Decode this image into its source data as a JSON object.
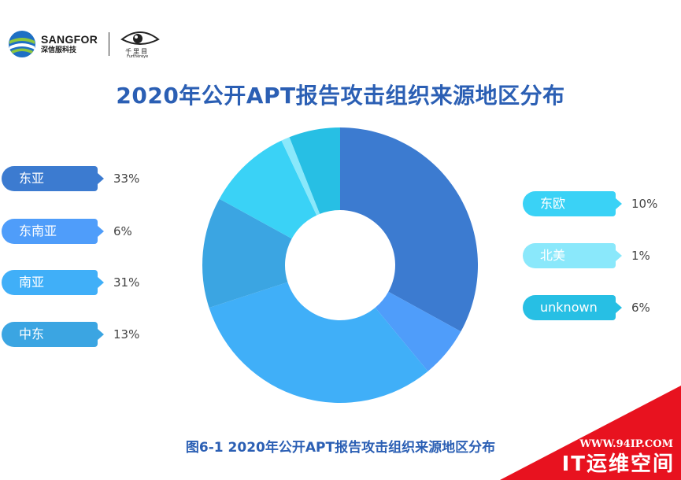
{
  "logo": {
    "sangfor_name": "SANGFOR",
    "sangfor_cn": "深信服科技",
    "eye_cn": "千里目",
    "eye_en": "Furthereye"
  },
  "title": "2020年公开APT报告攻击组织来源地区分布",
  "caption": "图6-1  2020年公开APT报告攻击组织来源地区分布",
  "watermark": {
    "url": "WWW.94IP.COM",
    "text": "IT运维空间"
  },
  "legend": [
    {
      "label": "东亚",
      "percent": "33%",
      "color": "#3c7bd0"
    },
    {
      "label": "东南亚",
      "percent": "6%",
      "color": "#4f9dfa"
    },
    {
      "label": "南亚",
      "percent": "31%",
      "color": "#40aff8"
    },
    {
      "label": "中东",
      "percent": "13%",
      "color": "#3ba5e2"
    },
    {
      "label": "东欧",
      "percent": "10%",
      "color": "#3ad2f6"
    },
    {
      "label": "北美",
      "percent": "1%",
      "color": "#8ae8fb"
    },
    {
      "label": "unknown",
      "percent": "6%",
      "color": "#27bfe4"
    }
  ],
  "chart_data": {
    "type": "pie",
    "title": "2020年公开APT报告攻击组织来源地区分布",
    "categories": [
      "东亚",
      "东南亚",
      "南亚",
      "中东",
      "东欧",
      "北美",
      "unknown"
    ],
    "values": [
      33,
      6,
      31,
      13,
      10,
      1,
      6
    ],
    "unit": "%",
    "donut": true,
    "colors": [
      "#3c7bd0",
      "#4f9dfa",
      "#40aff8",
      "#3ba5e2",
      "#3ad2f6",
      "#8ae8fb",
      "#27bfe4"
    ]
  }
}
